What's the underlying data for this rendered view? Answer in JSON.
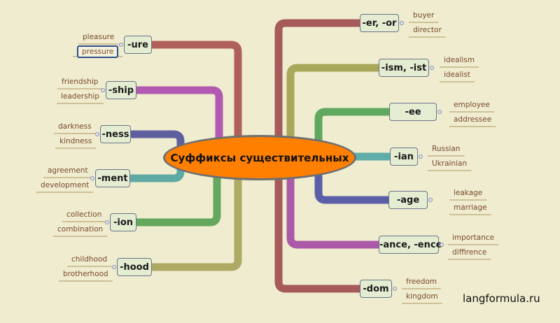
{
  "center_topic": "Суффиксы существительных",
  "watermark": "langformula.ru",
  "left_branches": [
    {
      "suffix": "-ure",
      "words": [
        "pleasure",
        "pressure"
      ],
      "color": "#b0605b"
    },
    {
      "suffix": "-ship",
      "words": [
        "friendship",
        "leadership"
      ],
      "color": "#b25ab2"
    },
    {
      "suffix": "-ness",
      "words": [
        "darkness",
        "kindness"
      ],
      "color": "#5f5f9f"
    },
    {
      "suffix": "-ment",
      "words": [
        "agreement",
        "development"
      ],
      "color": "#5faaa5"
    },
    {
      "suffix": "-ion",
      "words": [
        "collection",
        "combination"
      ],
      "color": "#63a85e"
    },
    {
      "suffix": "-hood",
      "words": [
        "childhood",
        "brotherhood"
      ],
      "color": "#aeaa63"
    }
  ],
  "right_branches": [
    {
      "suffix": "-er, -or",
      "words": [
        "buyer",
        "director"
      ],
      "color": "#a65a5a"
    },
    {
      "suffix": "-ism, -ist",
      "words": [
        "idealism",
        "idealist"
      ],
      "color": "#a8a85b"
    },
    {
      "suffix": "-ee",
      "words": [
        "employee",
        "addressee"
      ],
      "color": "#5fa85f"
    },
    {
      "suffix": "-ian",
      "words": [
        "Russian",
        "Ukrainian"
      ],
      "color": "#5fada8"
    },
    {
      "suffix": "-age",
      "words": [
        "leakage",
        "marriage"
      ],
      "color": "#5b5fa8"
    },
    {
      "suffix": "-ance, -ence",
      "words": [
        "importance",
        "diffirence"
      ],
      "color": "#aa5aa8"
    },
    {
      "suffix": "-dom",
      "words": [
        "freedom",
        "kingdom"
      ],
      "color": "#a65a5a"
    }
  ]
}
